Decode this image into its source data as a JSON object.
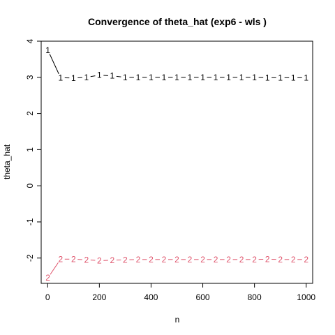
{
  "chart_data": {
    "type": "line",
    "title": "Convergence of theta_hat (exp6 - wls )",
    "xlabel": "n",
    "ylabel": "theta_hat",
    "xlim": [
      -25,
      1025
    ],
    "ylim": [
      -2.7,
      4.0
    ],
    "x_ticks": [
      0,
      200,
      400,
      600,
      800,
      1000
    ],
    "x_tick_labels": [
      "0",
      "200",
      "400",
      "600",
      "800",
      "1000"
    ],
    "y_ticks": [
      -2,
      -1,
      0,
      1,
      2,
      3,
      4
    ],
    "y_tick_labels": [
      "-2",
      "-1",
      "0",
      "1",
      "2",
      "3",
      "4"
    ],
    "grid": false,
    "legend": "none",
    "x": [
      1,
      50,
      100,
      150,
      200,
      250,
      300,
      350,
      400,
      450,
      500,
      550,
      600,
      650,
      700,
      750,
      800,
      850,
      900,
      950,
      1000
    ],
    "series": [
      {
        "marker": "1",
        "color": "#000000",
        "values": [
          3.75,
          2.99,
          2.98,
          3.0,
          3.06,
          3.04,
          3.0,
          3.0,
          3.0,
          3.0,
          3.0,
          3.0,
          3.0,
          3.0,
          3.0,
          3.0,
          3.0,
          2.99,
          2.99,
          2.99,
          2.99
        ]
      },
      {
        "marker": "2",
        "color": "#DF536B",
        "values": [
          -2.55,
          -2.03,
          -2.03,
          -2.05,
          -2.07,
          -2.06,
          -2.05,
          -2.04,
          -2.04,
          -2.04,
          -2.04,
          -2.04,
          -2.04,
          -2.04,
          -2.04,
          -2.04,
          -2.04,
          -2.03,
          -2.04,
          -2.04,
          -2.04
        ]
      }
    ]
  }
}
